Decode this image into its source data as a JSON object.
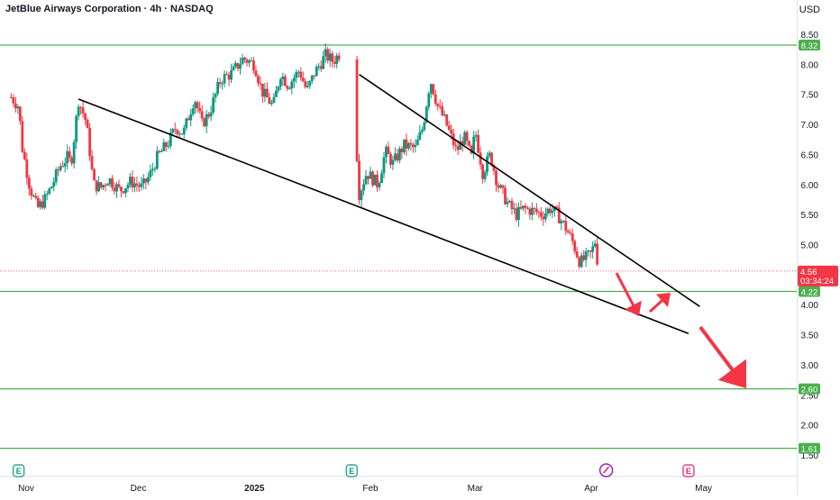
{
  "chart_data": {
    "type": "candlestick",
    "title": "JetBlue Airways Corporation · 4h · NASDAQ",
    "currency": "USD",
    "ylim": [
      1.3,
      8.75
    ],
    "y_ticks": [
      "8.50",
      "8.00",
      "7.50",
      "7.00",
      "6.50",
      "6.00",
      "5.50",
      "5.00",
      "4.50",
      "4.00",
      "3.50",
      "3.00",
      "2.50",
      "2.00",
      "1.50"
    ],
    "x_ticks": [
      "Nov",
      "Dec",
      "2025",
      "Feb",
      "Mar",
      "Apr",
      "May"
    ],
    "levels": [
      {
        "value": 8.32,
        "label": "8.32"
      },
      {
        "value": 4.22,
        "label": "4.22"
      },
      {
        "value": 2.6,
        "label": "2.60"
      },
      {
        "value": 1.61,
        "label": "1.61"
      }
    ],
    "last_price": {
      "value": 4.56,
      "label": "4.56",
      "countdown": "03:34:24"
    },
    "trendlines": [
      {
        "name": "support",
        "from": [
          "Nov-15",
          7.42
        ],
        "to": [
          "Apr-27",
          3.52
        ]
      },
      {
        "name": "resistance",
        "from": [
          "Jan-29",
          7.83
        ],
        "to": [
          "Apr-30",
          3.97
        ]
      }
    ],
    "candles": [],
    "colors": {
      "up": "#089981",
      "down": "#f23645",
      "level": "#4caf50",
      "arrow": "#f23645",
      "trend": "#000000"
    },
    "events": [
      {
        "type": "earnings",
        "label": "E",
        "x": "Oct-30",
        "style": "past"
      },
      {
        "type": "earnings",
        "label": "E",
        "x": "Jan-27",
        "style": "past"
      },
      {
        "type": "dividend",
        "label": "",
        "x": "Apr-05",
        "style": "special"
      },
      {
        "type": "earnings",
        "label": "E",
        "x": "Apr-27",
        "style": "future"
      }
    ]
  }
}
